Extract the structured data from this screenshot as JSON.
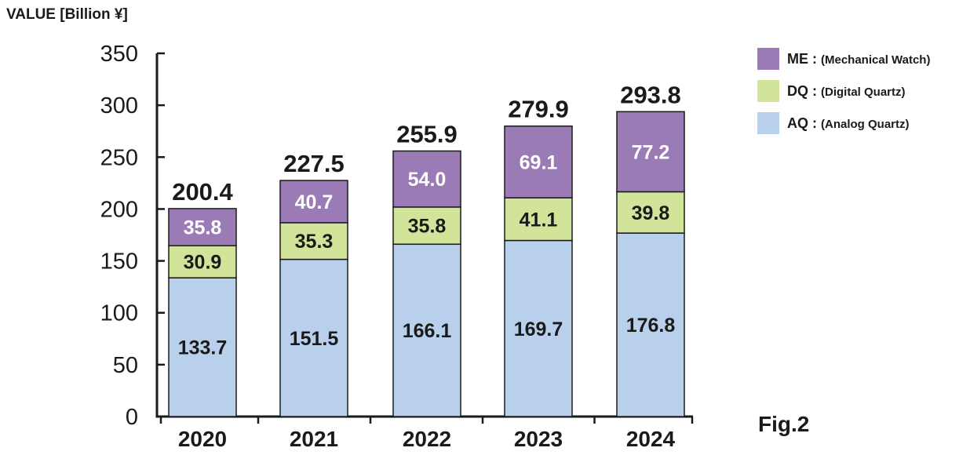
{
  "chart_data": {
    "type": "bar",
    "stacked": true,
    "ylabel": "VALUE [Billion ¥]",
    "xlabel": "",
    "ylim": [
      0,
      350
    ],
    "yticks": [
      0,
      50,
      100,
      150,
      200,
      250,
      300,
      350
    ],
    "grid": false,
    "legend_position": "top-right",
    "categories": [
      "2020",
      "2021",
      "2022",
      "2023",
      "2024"
    ],
    "series": [
      {
        "key": "AQ",
        "legend_code": "AQ :",
        "legend_desc": "(Analog Quartz)",
        "color": "#b8d0ec",
        "label_color": "#1a1a1a",
        "values": [
          133.7,
          151.5,
          166.1,
          169.7,
          176.8
        ],
        "labels": [
          "133.7",
          "151.5",
          "166.1",
          "169.7",
          "176.8"
        ]
      },
      {
        "key": "DQ",
        "legend_code": "DQ :",
        "legend_desc": "(Digital Quartz)",
        "color": "#d2e49a",
        "label_color": "#1a1a1a",
        "values": [
          30.9,
          35.3,
          35.8,
          41.1,
          39.8
        ],
        "labels": [
          "30.9",
          "35.3",
          "35.8",
          "41.1",
          "39.8"
        ]
      },
      {
        "key": "ME",
        "legend_code": "ME :",
        "legend_desc": "(Mechanical Watch)",
        "color": "#9b7bb5",
        "label_color": "#ffffff",
        "values": [
          35.8,
          40.7,
          54.0,
          69.1,
          77.2
        ],
        "labels": [
          "35.8",
          "40.7",
          "54.0",
          "69.1",
          "77.2"
        ]
      }
    ],
    "totals": [
      200.4,
      227.5,
      255.9,
      279.9,
      293.8
    ],
    "total_labels": [
      "200.4",
      "227.5",
      "255.9",
      "279.9",
      "293.8"
    ],
    "annotation": "Fig.2"
  }
}
